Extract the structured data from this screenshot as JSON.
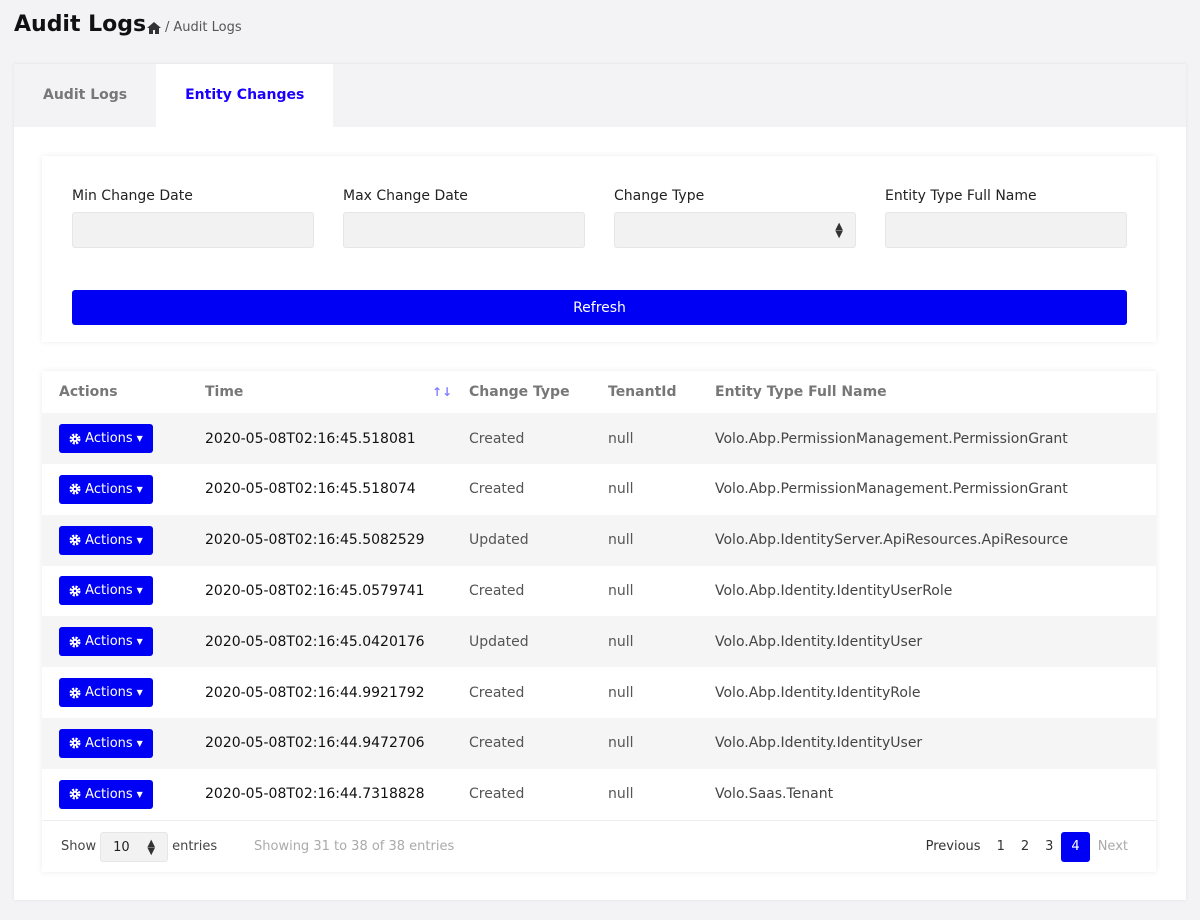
{
  "page": {
    "title": "Audit Logs",
    "breadcrumb": {
      "home_icon": "home-icon",
      "current": "Audit Logs"
    }
  },
  "tabs": [
    {
      "label": "Audit Logs",
      "active": false
    },
    {
      "label": "Entity Changes",
      "active": true
    }
  ],
  "filters": {
    "min_date_label": "Min Change Date",
    "max_date_label": "Max Change Date",
    "change_type_label": "Change Type",
    "entity_type_label": "Entity Type Full Name",
    "refresh_label": "Refresh"
  },
  "table": {
    "headers": [
      "Actions",
      "Time",
      "Change Type",
      "TenantId",
      "Entity Type Full Name"
    ],
    "action_label": "Actions",
    "rows": [
      [
        "2020-05-08T02:16:45.518081",
        "Created",
        "null",
        "Volo.Abp.PermissionManagement.PermissionGrant"
      ],
      [
        "2020-05-08T02:16:45.518074",
        "Created",
        "null",
        "Volo.Abp.PermissionManagement.PermissionGrant"
      ],
      [
        "2020-05-08T02:16:45.5082529",
        "Updated",
        "null",
        "Volo.Abp.IdentityServer.ApiResources.ApiResource"
      ],
      [
        "2020-05-08T02:16:45.0579741",
        "Created",
        "null",
        "Volo.Abp.Identity.IdentityUserRole"
      ],
      [
        "2020-05-08T02:16:45.0420176",
        "Updated",
        "null",
        "Volo.Abp.Identity.IdentityUser"
      ],
      [
        "2020-05-08T02:16:44.9921792",
        "Created",
        "null",
        "Volo.Abp.Identity.IdentityRole"
      ],
      [
        "2020-05-08T02:16:44.9472706",
        "Created",
        "null",
        "Volo.Abp.Identity.IdentityUser"
      ],
      [
        "2020-05-08T02:16:44.7318828",
        "Created",
        "null",
        "Volo.Saas.Tenant"
      ]
    ]
  },
  "footer": {
    "show": "Show",
    "page_size": "10",
    "entries": "entries",
    "info": "Showing 31 to 38 of 38 entries",
    "previous": "Previous",
    "pages": [
      "1",
      "2",
      "3",
      "4"
    ],
    "current_page": "4",
    "next": "Next"
  },
  "colors": {
    "primary": "#0000f5",
    "tab_active": "#1a00ff"
  }
}
